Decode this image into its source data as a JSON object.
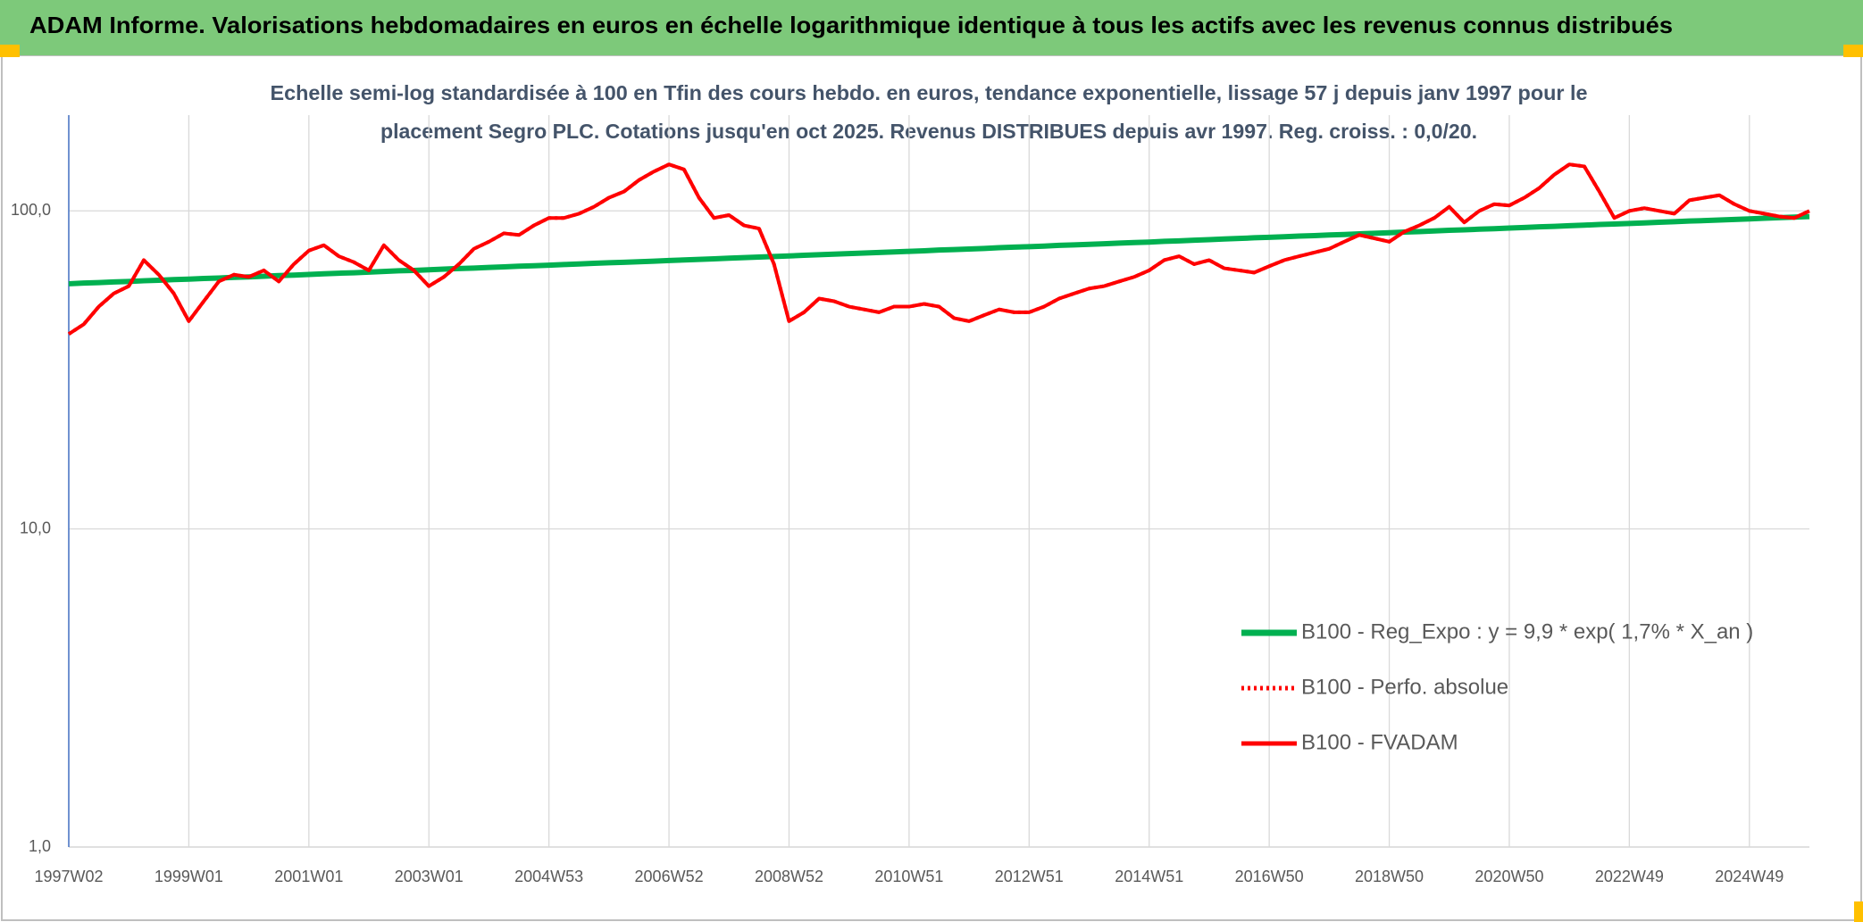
{
  "chart_data": {
    "type": "line",
    "title": "ADAM Informe. Valorisations hebdomadaires en euros en échelle logarithmique identique à tous les actifs avec les revenus connus distribués",
    "subtitle": [
      "Echelle semi-log standardisée à 100 en Tfin des cours hebdo. en euros, tendance exponentielle, lissage 57 j depuis janv 1997 pour le",
      "placement Segro PLC. Cotations jusqu'en oct 2025. Revenus DISTRIBUES depuis avr 1997. Reg. croiss. : 0,0/20."
    ],
    "log_scale": true,
    "grid": true,
    "legend_position": "right",
    "ylim": [
      1,
      200
    ],
    "yticks": [
      {
        "value": 1,
        "label": "1,0"
      },
      {
        "value": 10,
        "label": "10,0"
      },
      {
        "value": 100,
        "label": "100,0"
      }
    ],
    "categories": [
      "1997W02",
      null,
      null,
      null,
      null,
      null,
      null,
      null,
      "1999W01",
      null,
      null,
      null,
      null,
      null,
      null,
      null,
      "2001W01",
      null,
      null,
      null,
      null,
      null,
      null,
      null,
      "2003W01",
      null,
      null,
      null,
      null,
      null,
      null,
      null,
      "2004W53",
      null,
      null,
      null,
      null,
      null,
      null,
      null,
      "2006W52",
      null,
      null,
      null,
      null,
      null,
      null,
      null,
      "2008W52",
      null,
      null,
      null,
      null,
      null,
      null,
      null,
      "2010W51",
      null,
      null,
      null,
      null,
      null,
      null,
      null,
      "2012W51",
      null,
      null,
      null,
      null,
      null,
      null,
      null,
      "2014W51",
      null,
      null,
      null,
      null,
      null,
      null,
      null,
      "2016W50",
      null,
      null,
      null,
      null,
      null,
      null,
      null,
      "2018W50",
      null,
      null,
      null,
      null,
      null,
      null,
      null,
      "2020W50",
      null,
      null,
      null,
      null,
      null,
      null,
      null,
      "2022W49",
      null,
      null,
      null,
      null,
      null,
      null,
      null,
      "2024W49",
      null,
      null,
      null,
      null
    ],
    "series": [
      {
        "name": "B100 - Reg_Expo : y = 9,9 * exp( 1,7% *  X_an )",
        "color": "#00b050",
        "style": "solid",
        "width": 6,
        "values": [
          59.0,
          59.3,
          59.5,
          59.8,
          60.0,
          60.3,
          60.5,
          60.8,
          61.0,
          61.3,
          61.5,
          61.8,
          62.0,
          62.3,
          62.6,
          62.8,
          63.1,
          63.4,
          63.7,
          63.9,
          64.2,
          64.5,
          64.8,
          65.0,
          65.3,
          65.6,
          65.9,
          66.1,
          66.4,
          66.7,
          67.0,
          67.2,
          67.5,
          67.8,
          68.1,
          68.4,
          68.7,
          68.9,
          69.2,
          69.5,
          69.8,
          70.1,
          70.4,
          70.7,
          71.0,
          71.3,
          71.6,
          71.9,
          72.2,
          72.5,
          72.8,
          73.1,
          73.4,
          73.7,
          74.0,
          74.3,
          74.6,
          74.9,
          75.3,
          75.6,
          75.9,
          76.2,
          76.6,
          76.9,
          77.2,
          77.5,
          77.9,
          78.2,
          78.5,
          78.8,
          79.2,
          79.5,
          79.8,
          80.2,
          80.5,
          80.9,
          81.2,
          81.6,
          81.9,
          82.3,
          82.6,
          82.9,
          83.3,
          83.6,
          84.0,
          84.3,
          84.7,
          85.0,
          85.4,
          85.8,
          86.1,
          86.5,
          86.9,
          87.2,
          87.6,
          87.9,
          88.3,
          88.7,
          89.1,
          89.4,
          89.8,
          90.2,
          90.6,
          90.9,
          91.3,
          91.7,
          92.1,
          92.5,
          92.9,
          93.2,
          93.6,
          94.0,
          94.4,
          94.8,
          95.2,
          95.6,
          96.0
        ]
      },
      {
        "name": "B100 - Perfo. absolue",
        "color": "#ff0000",
        "style": "dotted",
        "width": 4,
        "values": [
          41,
          44,
          50,
          55,
          58,
          70,
          63,
          55,
          45,
          52,
          60,
          63,
          62,
          65,
          60,
          68,
          75,
          78,
          72,
          69,
          65,
          78,
          70,
          65,
          58,
          62,
          68,
          76,
          80,
          85,
          84,
          90,
          95,
          95,
          98,
          103,
          110,
          115,
          125,
          133,
          140,
          135,
          110,
          95,
          97,
          90,
          88,
          68,
          45,
          48,
          53,
          52,
          50,
          49,
          48,
          50,
          50,
          51,
          50,
          46,
          45,
          47,
          49,
          48,
          48,
          50,
          53,
          55,
          57,
          58,
          60,
          62,
          65,
          70,
          72,
          68,
          70,
          66,
          65,
          64,
          67,
          70,
          72,
          74,
          76,
          80,
          84,
          82,
          80,
          86,
          90,
          95,
          103,
          92,
          100,
          105,
          104,
          110,
          118,
          130,
          140,
          138,
          115,
          95,
          100,
          102,
          100,
          98,
          108,
          110,
          112,
          105,
          100,
          98,
          96,
          95,
          100
        ]
      },
      {
        "name": "B100 - FVADAM",
        "color": "#ff0000",
        "style": "solid",
        "width": 4,
        "values": [
          41,
          44,
          50,
          55,
          58,
          70,
          63,
          55,
          45,
          52,
          60,
          63,
          62,
          65,
          60,
          68,
          75,
          78,
          72,
          69,
          65,
          78,
          70,
          65,
          58,
          62,
          68,
          76,
          80,
          85,
          84,
          90,
          95,
          95,
          98,
          103,
          110,
          115,
          125,
          133,
          140,
          135,
          110,
          95,
          97,
          90,
          88,
          68,
          45,
          48,
          53,
          52,
          50,
          49,
          48,
          50,
          50,
          51,
          50,
          46,
          45,
          47,
          49,
          48,
          48,
          50,
          53,
          55,
          57,
          58,
          60,
          62,
          65,
          70,
          72,
          68,
          70,
          66,
          65,
          64,
          67,
          70,
          72,
          74,
          76,
          80,
          84,
          82,
          80,
          86,
          90,
          95,
          103,
          92,
          100,
          105,
          104,
          110,
          118,
          130,
          140,
          138,
          115,
          95,
          100,
          102,
          100,
          98,
          108,
          110,
          112,
          105,
          100,
          98,
          96,
          95,
          100
        ]
      }
    ]
  }
}
